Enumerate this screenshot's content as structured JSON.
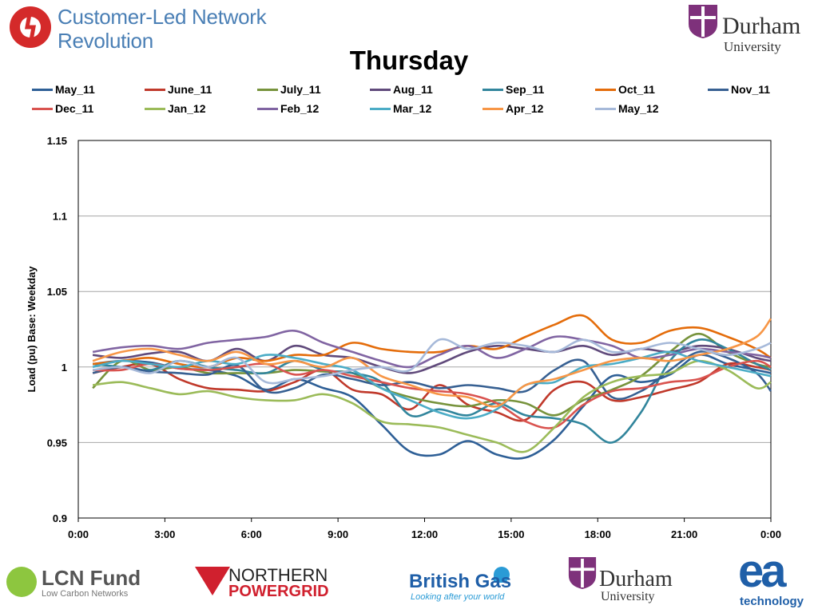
{
  "header": {
    "clnr_line1": "Customer-Led Network",
    "clnr_line2": "Revolution",
    "durham_name": "Durham",
    "durham_sub": "University"
  },
  "footer": {
    "lcn_title": "LCN Fund",
    "lcn_sub": "Low Carbon Networks",
    "npg_line1": "NORTHERN",
    "npg_line2": "POWERGRID",
    "bg_title": "British Gas",
    "bg_sub": "Looking after your world",
    "durham_name": "Durham",
    "durham_sub": "University",
    "ea_title": "ea",
    "ea_sub": "technology"
  },
  "colors": {
    "clnr_blue": "#4a7fb5",
    "durham_purple": "#7e317b",
    "gridline": "#a6a6a6"
  },
  "chart_data": {
    "type": "line",
    "title": "Thursday",
    "xlabel": "",
    "ylabel": "Load (pu) Base: Weekday",
    "x_ticks": [
      "0:00",
      "3:00",
      "6:00",
      "9:00",
      "12:00",
      "15:00",
      "18:00",
      "21:00",
      "0:00"
    ],
    "y_ticks": [
      "0.9",
      "0.95",
      "1",
      "1.05",
      "1.1",
      "1.15"
    ],
    "ylim": [
      0.9,
      1.15
    ],
    "xlim_hours": [
      0,
      24
    ],
    "grid": "horizontal",
    "legend_position": "top",
    "x_hours": [
      0.5,
      1.5,
      2.5,
      3.5,
      4.5,
      5.5,
      6.5,
      7.5,
      8.5,
      9.5,
      10.5,
      11.5,
      12.5,
      13.5,
      14.5,
      15.5,
      16.5,
      17.5,
      18.5,
      19.5,
      20.5,
      21.5,
      22.5,
      23.5,
      24
    ],
    "series": [
      {
        "name": "May_11",
        "color": "#2e5f96",
        "values": [
          1.002,
          1.004,
          1.003,
          0.999,
          0.998,
          0.994,
          0.985,
          0.992,
          0.986,
          0.98,
          0.962,
          0.944,
          0.942,
          0.951,
          0.942,
          0.94,
          0.952,
          0.974,
          0.994,
          0.99,
          0.995,
          1.008,
          1.002,
          0.998,
          0.996
        ]
      },
      {
        "name": "June_11",
        "color": "#c0392b",
        "values": [
          0.996,
          1.0,
          1.002,
          0.992,
          0.986,
          0.985,
          0.984,
          0.99,
          0.998,
          0.985,
          0.982,
          0.972,
          0.988,
          0.975,
          0.97,
          0.965,
          0.985,
          0.99,
          0.978,
          0.98,
          0.985,
          0.99,
          1.002,
          1.0,
          0.998
        ]
      },
      {
        "name": "July_11",
        "color": "#77933c",
        "values": [
          0.986,
          1.004,
          0.998,
          1.0,
          0.996,
          0.996,
          0.996,
          0.998,
          0.997,
          0.996,
          0.986,
          0.98,
          0.976,
          0.974,
          0.978,
          0.976,
          0.968,
          0.978,
          0.985,
          0.994,
          1.01,
          1.022,
          1.01,
          1.002,
          1.0
        ]
      },
      {
        "name": "Aug_11",
        "color": "#604a7b",
        "values": [
          1.008,
          1.006,
          1.009,
          1.01,
          1.004,
          1.012,
          1.004,
          1.014,
          1.008,
          1.006,
          1.0,
          0.996,
          1.002,
          1.01,
          1.014,
          1.012,
          1.01,
          1.014,
          1.008,
          1.012,
          1.01,
          1.014,
          1.012,
          1.006,
          1.004
        ]
      },
      {
        "name": "Sep_11",
        "color": "#31859c",
        "values": [
          1.002,
          1.0,
          0.998,
          1.004,
          1.0,
          0.998,
          0.996,
          1.004,
          0.998,
          0.996,
          0.99,
          0.968,
          0.972,
          0.968,
          0.976,
          0.968,
          0.966,
          0.962,
          0.95,
          0.97,
          1.004,
          1.018,
          1.012,
          1.002,
          0.998
        ]
      },
      {
        "name": "Oct_11",
        "color": "#e46c0a",
        "values": [
          1.002,
          1.004,
          1.006,
          1.002,
          1.0,
          1.006,
          1.004,
          1.008,
          1.008,
          1.016,
          1.012,
          1.01,
          1.01,
          1.014,
          1.012,
          1.02,
          1.028,
          1.034,
          1.018,
          1.016,
          1.024,
          1.026,
          1.02,
          1.012,
          1.006
        ]
      },
      {
        "name": "Nov_11",
        "color": "#376092",
        "values": [
          0.996,
          1.0,
          0.997,
          0.996,
          0.995,
          1.001,
          0.984,
          0.986,
          0.995,
          0.992,
          0.988,
          0.99,
          0.986,
          0.988,
          0.986,
          0.984,
          0.998,
          1.004,
          0.98,
          0.984,
          0.998,
          1.01,
          1.006,
          0.996,
          0.984
        ]
      },
      {
        "name": "Dec_11",
        "color": "#d9534f",
        "values": [
          0.998,
          0.998,
          1.002,
          0.999,
          0.998,
          1.0,
          1.002,
          0.995,
          0.998,
          0.994,
          0.99,
          0.986,
          0.984,
          0.982,
          0.976,
          0.964,
          0.96,
          0.975,
          0.984,
          0.986,
          0.99,
          0.992,
          1.0,
          1.004,
          1.0
        ]
      },
      {
        "name": "Jan_12",
        "color": "#9bbb59",
        "values": [
          0.988,
          0.99,
          0.986,
          0.982,
          0.984,
          0.98,
          0.978,
          0.978,
          0.982,
          0.976,
          0.964,
          0.962,
          0.96,
          0.955,
          0.95,
          0.944,
          0.96,
          0.98,
          0.99,
          0.994,
          0.996,
          1.004,
          0.998,
          0.986,
          0.99
        ]
      },
      {
        "name": "Feb_12",
        "color": "#8064a2",
        "values": [
          1.01,
          1.013,
          1.014,
          1.012,
          1.016,
          1.018,
          1.02,
          1.024,
          1.016,
          1.01,
          1.004,
          1.0,
          1.008,
          1.014,
          1.006,
          1.012,
          1.02,
          1.018,
          1.014,
          1.006,
          1.008,
          1.012,
          1.01,
          1.008,
          1.006
        ]
      },
      {
        "name": "Mar_12",
        "color": "#4bacc6",
        "values": [
          1.0,
          1.004,
          1.002,
          1.0,
          1.004,
          1.002,
          1.008,
          1.006,
          1.002,
          0.998,
          0.986,
          0.978,
          0.97,
          0.966,
          0.972,
          0.988,
          0.99,
          1.0,
          1.002,
          1.006,
          1.01,
          1.004,
          1.0,
          0.996,
          0.994
        ]
      },
      {
        "name": "Apr_12",
        "color": "#f79646",
        "values": [
          1.004,
          1.01,
          1.012,
          1.008,
          1.004,
          1.01,
          1.002,
          1.004,
          1.0,
          1.006,
          0.994,
          0.988,
          0.982,
          0.98,
          0.974,
          0.988,
          0.992,
          0.998,
          1.004,
          1.006,
          1.004,
          1.008,
          1.012,
          1.02,
          1.032
        ]
      },
      {
        "name": "May_12",
        "color": "#a6b9d9",
        "values": [
          0.998,
          1.0,
          0.996,
          1.004,
          1.0,
          1.006,
          0.99,
          0.992,
          0.994,
          0.998,
          1.0,
          0.998,
          1.018,
          1.012,
          1.016,
          1.014,
          1.01,
          1.018,
          1.01,
          1.012,
          1.016,
          1.012,
          1.008,
          1.012,
          1.016
        ]
      }
    ]
  }
}
